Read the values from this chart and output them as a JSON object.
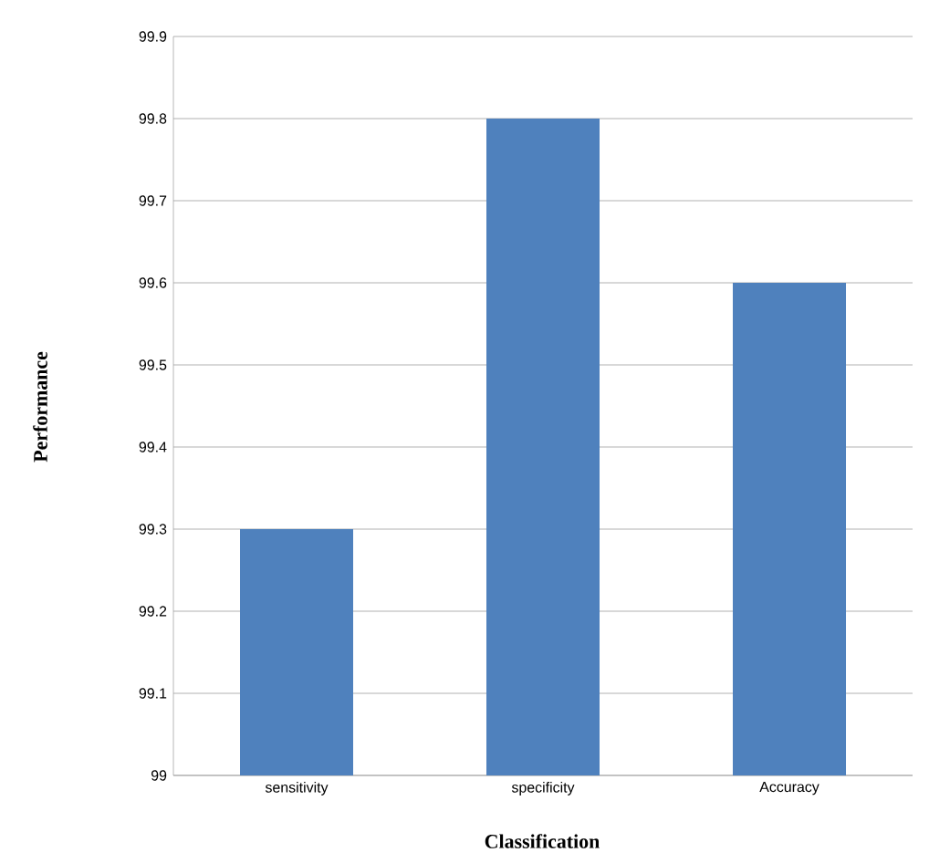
{
  "chart_data": {
    "type": "bar",
    "xlabel": "Classification",
    "ylabel": "Performance",
    "categories": [
      "sensitivity",
      "specificity",
      "Accuracy"
    ],
    "values": [
      99.3,
      99.8,
      99.6
    ],
    "color": "#4f81bd",
    "ylim": [
      99,
      99.9
    ],
    "yticks": [
      99,
      99.1,
      99.2,
      99.3,
      99.4,
      99.5,
      99.6,
      99.7,
      99.8,
      99.9
    ],
    "grid": "y"
  }
}
